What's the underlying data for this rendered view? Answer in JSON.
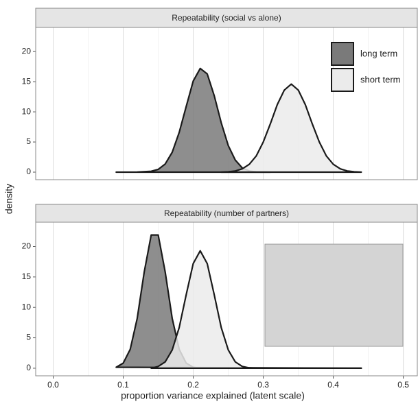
{
  "chart_data": [
    {
      "type": "density",
      "title": "Repeatability (social vs alone)",
      "ylabel": "density",
      "legend": "top-right",
      "xlim": [
        -0.025,
        0.52
      ],
      "ylim": [
        -1.25,
        24
      ],
      "xticks": [
        {
          "value": 0,
          "label": "0.0"
        },
        0.1,
        0.2,
        0.3,
        0.4,
        0.5
      ],
      "yticks": [
        0,
        5,
        10,
        15,
        20
      ],
      "series": [
        {
          "name": "long term",
          "color": "#7a7a7a",
          "x": [
            0.09,
            0.12,
            0.14,
            0.15,
            0.16,
            0.17,
            0.18,
            0.19,
            0.2,
            0.21,
            0.22,
            0.23,
            0.24,
            0.25,
            0.26,
            0.27,
            0.28,
            0.29,
            0.31
          ],
          "values": [
            0,
            0.02,
            0.15,
            0.46,
            1.35,
            3.3,
            6.6,
            10.9,
            15.1,
            17.2,
            16.3,
            12.7,
            8.2,
            4.4,
            2.0,
            0.7,
            0.2,
            0.05,
            0
          ]
        },
        {
          "name": "short term",
          "color": "#ebebeb",
          "x": [
            0.24,
            0.25,
            0.26,
            0.27,
            0.28,
            0.29,
            0.3,
            0.31,
            0.32,
            0.33,
            0.34,
            0.35,
            0.36,
            0.37,
            0.38,
            0.39,
            0.4,
            0.41,
            0.42,
            0.43,
            0.44
          ],
          "values": [
            0,
            0.06,
            0.2,
            0.55,
            1.3,
            2.7,
            5.0,
            8.0,
            11.2,
            13.6,
            14.6,
            13.6,
            11.2,
            8.0,
            5.0,
            2.7,
            1.3,
            0.55,
            0.2,
            0.06,
            0
          ]
        }
      ]
    },
    {
      "type": "density",
      "title": "Repeatability (number of partners)",
      "xlabel": "proportion variance explained (latent scale)",
      "xlim": [
        -0.025,
        0.52
      ],
      "ylim": [
        -1.25,
        24
      ],
      "xticks": [
        {
          "value": 0,
          "label": "0.0"
        },
        0.1,
        0.2,
        0.3,
        0.4,
        0.5
      ],
      "yticks": [
        0,
        5,
        10,
        15,
        20
      ],
      "series": [
        {
          "name": "long term",
          "color": "#7a7a7a",
          "x": [
            0.09,
            0.1,
            0.11,
            0.12,
            0.13,
            0.14,
            0.15,
            0.16,
            0.17,
            0.18,
            0.19,
            0.2,
            0.21,
            0.22,
            0.44
          ],
          "values": [
            0.16,
            0.84,
            3.1,
            8.2,
            15.8,
            21.9,
            21.9,
            15.8,
            8.2,
            3.1,
            0.84,
            0.16,
            0.02,
            0,
            0
          ]
        },
        {
          "name": "short term",
          "color": "#ebebeb",
          "x": [
            0.14,
            0.15,
            0.16,
            0.17,
            0.18,
            0.19,
            0.2,
            0.21,
            0.22,
            0.23,
            0.24,
            0.25,
            0.26,
            0.27,
            0.28,
            0.29,
            0.44
          ],
          "values": [
            0,
            0.29,
            1.04,
            3.0,
            6.7,
            12.1,
            17.2,
            19.3,
            17.2,
            12.1,
            6.7,
            3.0,
            1.04,
            0.29,
            0.06,
            0,
            0
          ]
        }
      ]
    }
  ]
}
